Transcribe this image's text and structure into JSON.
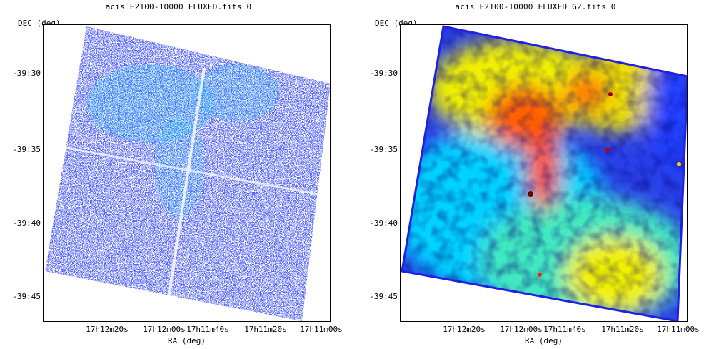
{
  "panels": [
    {
      "title": "acis_E2100-10000_FLUXED.fits_0",
      "ylabel": "DEC (deg)",
      "xlabel": "RA (deg)",
      "yticks": [
        "-39:30",
        "-39:35",
        "-39:40",
        "-39:45"
      ],
      "xticks": [
        "17h12m20s",
        "17h12m00s",
        "17h11m40s",
        "17h11m20s",
        "17h11m00s"
      ],
      "colormap": [
        "#ffffff",
        "#1a1aff",
        "#00d2ff"
      ]
    },
    {
      "title": "acis_E2100-10000_FLUXED_G2.fits_0",
      "ylabel": "DEC (deg)",
      "xlabel": "RA (deg)",
      "yticks": [
        "-39:30",
        "-39:35",
        "-39:40",
        "-39:45"
      ],
      "xticks": [
        "17h12m20s",
        "17h12m00s",
        "17h11m40s",
        "17h11m20s",
        "17h11m00s"
      ],
      "colormap": [
        "#0000c8",
        "#00c8ff",
        "#00ff80",
        "#ffff00",
        "#ff8000",
        "#e00000",
        "#600000"
      ]
    }
  ]
}
